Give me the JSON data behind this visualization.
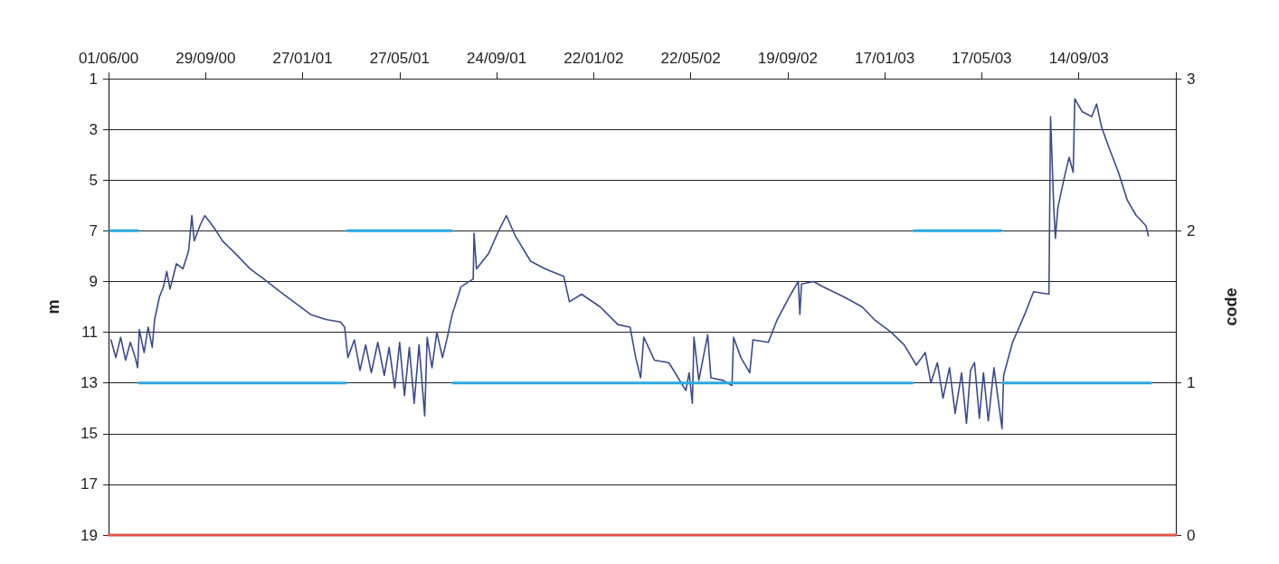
{
  "chart_data": {
    "type": "line",
    "ylabel": "m",
    "y2label": "code",
    "xlim": [
      "2000-06-01",
      "2004-01-12"
    ],
    "xticks": [
      {
        "value": "2000-06-01",
        "label": "01/06/00"
      },
      {
        "value": "2000-09-29",
        "label": "29/09/00"
      },
      {
        "value": "2001-01-27",
        "label": "27/01/01"
      },
      {
        "value": "2001-05-27",
        "label": "27/05/01"
      },
      {
        "value": "2001-09-24",
        "label": "24/09/01"
      },
      {
        "value": "2002-01-22",
        "label": "22/01/02"
      },
      {
        "value": "2002-05-22",
        "label": "22/05/02"
      },
      {
        "value": "2002-09-19",
        "label": "19/09/02"
      },
      {
        "value": "2003-01-17",
        "label": "17/01/03"
      },
      {
        "value": "2003-05-17",
        "label": "17/05/03"
      },
      {
        "value": "2003-09-14",
        "label": "14/09/03"
      },
      {
        "value": "2004-01-12",
        "label": null
      }
    ],
    "ylim": [
      19,
      1
    ],
    "yticks": [
      1,
      3,
      5,
      7,
      9,
      11,
      13,
      15,
      17,
      19
    ],
    "y2lim": [
      0,
      3
    ],
    "y2ticks": [
      0,
      1,
      2,
      3
    ],
    "grid": "y",
    "marker": "none",
    "line_style": "solid",
    "series": [
      {
        "color": "#3b4a8e",
        "x": [
          "2000-06-04",
          "2000-06-10",
          "2000-06-16",
          "2000-06-22",
          "2000-06-28",
          "2000-07-04",
          "2000-07-07",
          "2000-07-09",
          "2000-07-15",
          "2000-07-20",
          "2000-07-25",
          "2000-07-28",
          "2000-08-03",
          "2000-08-08",
          "2000-08-12",
          "2000-08-16",
          "2000-08-24",
          "2000-09-01",
          "2000-09-08",
          "2000-09-12",
          "2000-09-15",
          "2000-09-22",
          "2000-09-28",
          "2000-10-10",
          "2000-10-20",
          "2000-11-05",
          "2000-11-23",
          "2000-12-10",
          "2000-12-30",
          "2001-01-20",
          "2001-02-06",
          "2001-02-25",
          "2001-03-15",
          "2001-03-20",
          "2001-03-24",
          "2001-04-01",
          "2001-04-08",
          "2001-04-15",
          "2001-04-22",
          "2001-04-30",
          "2001-05-08",
          "2001-05-14",
          "2001-05-21",
          "2001-05-27",
          "2001-06-02",
          "2001-06-08",
          "2001-06-14",
          "2001-06-20",
          "2001-06-27",
          "2001-06-30",
          "2001-07-06",
          "2001-07-12",
          "2001-07-19",
          "2001-07-25",
          "2001-07-31",
          "2001-08-11",
          "2001-08-26",
          "2001-08-27",
          "2001-08-30",
          "2001-09-14",
          "2001-09-25",
          "2001-10-06",
          "2001-10-17",
          "2001-11-05",
          "2001-11-23",
          "2001-12-16",
          "2001-12-23",
          "2002-01-07",
          "2002-01-30",
          "2002-02-21",
          "2002-03-08",
          "2002-03-15",
          "2002-03-21",
          "2002-03-25",
          "2002-04-07",
          "2002-04-25",
          "2002-05-16",
          "2002-05-20",
          "2002-05-24",
          "2002-05-26",
          "2002-06-01",
          "2002-06-12",
          "2002-06-16",
          "2002-07-01",
          "2002-07-12",
          "2002-07-14",
          "2002-07-23",
          "2002-08-03",
          "2002-08-07",
          "2002-08-26",
          "2002-09-06",
          "2002-09-21",
          "2002-10-02",
          "2002-10-04",
          "2002-10-06",
          "2002-10-21",
          "2002-11-01",
          "2002-11-27",
          "2002-12-20",
          "2003-01-04",
          "2003-01-25",
          "2003-02-10",
          "2003-02-25",
          "2003-03-08",
          "2003-03-15",
          "2003-03-23",
          "2003-03-30",
          "2003-04-07",
          "2003-04-14",
          "2003-04-22",
          "2003-04-28",
          "2003-05-03",
          "2003-05-08",
          "2003-05-14",
          "2003-05-19",
          "2003-05-25",
          "2003-06-01",
          "2003-06-11",
          "2003-06-13",
          "2003-06-24",
          "2003-07-09",
          "2003-07-20",
          "2003-08-08",
          "2003-08-10",
          "2003-08-14",
          "2003-08-16",
          "2003-08-19",
          "2003-08-27",
          "2003-09-02",
          "2003-09-07",
          "2003-09-09",
          "2003-09-18",
          "2003-09-30",
          "2003-10-06",
          "2003-10-12",
          "2003-10-21",
          "2003-11-02",
          "2003-11-13",
          "2003-11-24",
          "2003-12-06",
          "2003-12-09"
        ],
        "values": [
          11.3,
          12.0,
          11.2,
          12.1,
          11.4,
          12.0,
          12.4,
          10.9,
          11.8,
          10.8,
          11.6,
          10.5,
          9.6,
          9.2,
          8.6,
          9.3,
          8.3,
          8.5,
          7.8,
          6.4,
          7.4,
          6.8,
          6.4,
          6.9,
          7.4,
          7.9,
          8.5,
          8.9,
          9.4,
          9.9,
          10.3,
          10.5,
          10.6,
          10.8,
          12.0,
          11.3,
          12.5,
          11.5,
          12.6,
          11.4,
          12.7,
          11.6,
          13.2,
          11.4,
          13.5,
          11.6,
          13.8,
          11.5,
          14.3,
          11.2,
          12.4,
          11.0,
          12.0,
          11.2,
          10.3,
          9.2,
          8.9,
          7.1,
          8.5,
          7.9,
          7.1,
          6.4,
          7.2,
          8.2,
          8.5,
          8.8,
          9.8,
          9.5,
          10.0,
          10.7,
          10.8,
          12.0,
          12.8,
          11.2,
          12.1,
          12.2,
          13.3,
          12.6,
          13.8,
          11.2,
          12.9,
          11.1,
          12.8,
          12.9,
          13.1,
          11.2,
          12.0,
          12.6,
          11.3,
          11.4,
          10.5,
          9.6,
          9.0,
          10.3,
          9.1,
          9.0,
          9.2,
          9.6,
          10.0,
          10.5,
          11.0,
          11.5,
          12.3,
          11.8,
          13.0,
          12.2,
          13.6,
          12.4,
          14.2,
          12.6,
          14.6,
          12.5,
          12.2,
          14.4,
          12.6,
          14.5,
          12.4,
          14.8,
          12.7,
          11.4,
          10.3,
          9.4,
          9.5,
          2.5,
          6.1,
          7.3,
          6.1,
          4.9,
          4.1,
          4.7,
          1.8,
          2.3,
          2.5,
          2.0,
          2.9,
          3.7,
          4.7,
          5.8,
          6.4,
          6.8,
          7.2
        ]
      },
      {
        "color": "#2aa8e0",
        "axis": "y2",
        "x": [
          "2000-06-03",
          "2000-07-07",
          "2000-07-08",
          "2000-07-09",
          "2001-03-21",
          "2001-03-22",
          "2001-03-23",
          "2001-07-30",
          "2001-07-31",
          "2001-08-01",
          "2003-02-20",
          "2003-02-21",
          "2003-02-22",
          "2003-06-10",
          "2003-06-11",
          "2003-06-12",
          "2003-12-12"
        ],
        "values": [
          2,
          2,
          null,
          1,
          1,
          null,
          2,
          2,
          null,
          1,
          1,
          null,
          2,
          2,
          null,
          1,
          1
        ]
      },
      {
        "color": "#e0574a",
        "axis": "y2",
        "x": [
          "2000-06-01",
          "2004-01-12"
        ],
        "values": [
          0,
          0
        ]
      }
    ]
  }
}
